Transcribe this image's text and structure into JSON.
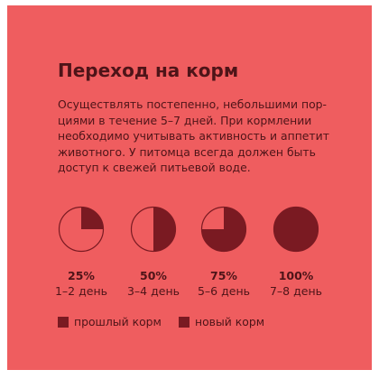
{
  "title": "Переход на корм",
  "paragraph_lines": [
    "Осуществлять постепенно, небольшими пор-",
    "циями в течение 5–7 дней. При кормлении",
    "необходимо учитывать активность и аппетит",
    "животного. У питомца всегда должен быть",
    "доступ к свежей питьевой воде."
  ],
  "stages": [
    {
      "percent_label": "25%",
      "days": "1–2 день",
      "new_fraction": 0.25
    },
    {
      "percent_label": "50%",
      "days": "3–4 день",
      "new_fraction": 0.5
    },
    {
      "percent_label": "75%",
      "days": "5–6 день",
      "new_fraction": 0.75
    },
    {
      "percent_label": "100%",
      "days": "7–8 день",
      "new_fraction": 1.0
    }
  ],
  "legend": {
    "old_food": "прошлый корм",
    "new_food": "новый корм"
  },
  "colors": {
    "background": "#ef5d5f",
    "dark": "#7a1a22",
    "text": "#4e1418"
  }
}
